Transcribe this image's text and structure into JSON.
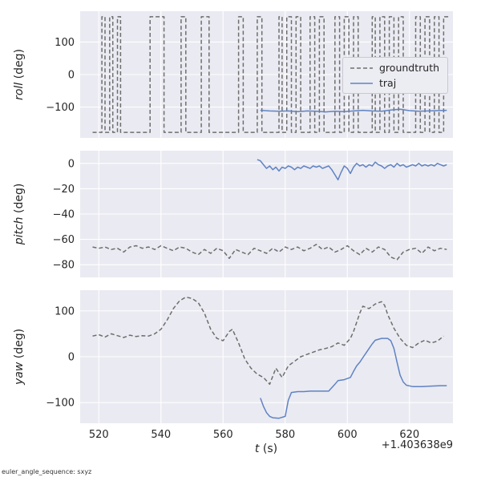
{
  "figure": {
    "background": "#ffffff",
    "axes_bg": "#eaeaf2",
    "grid_color": "#ffffff",
    "text_color": "#262626",
    "xlabel": "t (s)",
    "xlabel_var": "t",
    "xlabel_unit": "(s)",
    "x_offset_label": "+1.403638e9",
    "footer_note": "euler_angle_sequence: sxyz",
    "legend": [
      {
        "label": "groundtruth",
        "color": "#6e6e6e",
        "style": "dashed"
      },
      {
        "label": "traj",
        "color": "#5f83c2",
        "style": "solid"
      }
    ]
  },
  "chart_data": [
    {
      "type": "line",
      "ylabel": "roll (deg)",
      "ylabel_var": "roll",
      "ylabel_unit": "(deg)",
      "xlim": [
        514,
        634
      ],
      "ylim": [
        -195,
        195
      ],
      "xticks": [
        520,
        540,
        560,
        580,
        600,
        620
      ],
      "yticks": [
        -100,
        0,
        100
      ],
      "show_xticklabels": false,
      "grid": true,
      "series": [
        {
          "name": "groundtruth",
          "color": "#6e6e6e",
          "dash": true,
          "x": [
            518,
            521,
            521,
            522,
            522,
            523.5,
            523.5,
            524.5,
            524.5,
            526,
            526,
            527,
            527,
            536.5,
            536.5,
            541,
            541,
            546.5,
            546.5,
            548,
            548,
            553,
            553,
            555.5,
            555.5,
            565,
            565,
            566.5,
            566.5,
            571,
            571,
            572.5,
            572.5,
            578,
            578,
            579,
            579,
            580.5,
            580.5,
            582,
            582,
            583.5,
            583.5,
            585,
            585,
            588,
            588,
            589.5,
            589.5,
            591,
            591,
            592.5,
            592.5,
            596,
            596,
            597.5,
            597.5,
            599,
            599,
            600.5,
            600.5,
            602,
            602,
            603.5,
            603.5,
            608,
            608,
            609,
            609,
            610.5,
            610.5,
            612,
            612,
            613.5,
            613.5,
            615,
            615,
            616.5,
            616.5,
            618,
            618,
            622,
            622,
            623.5,
            623.5,
            625,
            625,
            626.5,
            626.5,
            628,
            628,
            629.5,
            629.5,
            631,
            631,
            632.5
          ],
          "y": [
            -178,
            -178,
            178,
            178,
            -178,
            -178,
            178,
            178,
            -178,
            -178,
            178,
            178,
            -178,
            -178,
            178,
            178,
            -178,
            -178,
            178,
            178,
            -178,
            -178,
            178,
            178,
            -178,
            -178,
            178,
            178,
            -178,
            -178,
            178,
            178,
            -178,
            -178,
            178,
            178,
            -178,
            -178,
            178,
            178,
            -178,
            -178,
            178,
            178,
            -178,
            -178,
            178,
            178,
            -178,
            -178,
            178,
            178,
            -178,
            -178,
            178,
            178,
            -178,
            -178,
            178,
            178,
            -178,
            -178,
            178,
            178,
            -178,
            -178,
            178,
            178,
            -178,
            -178,
            178,
            178,
            -178,
            -178,
            178,
            178,
            -178,
            -178,
            178,
            178,
            -178,
            -178,
            178,
            178,
            -178,
            -178,
            178,
            178,
            -178,
            -178,
            178,
            178,
            -178,
            -178,
            178,
            178
          ]
        },
        {
          "name": "traj",
          "color": "#5f83c2",
          "dash": false,
          "x": [
            572,
            575,
            578,
            581,
            584,
            587,
            590,
            593,
            596,
            599,
            602,
            605,
            608,
            611,
            614,
            617,
            620,
            623,
            626,
            629,
            632
          ],
          "y": [
            -110,
            -112,
            -113,
            -112,
            -114,
            -112,
            -113,
            -115,
            -113,
            -114,
            -112,
            -110,
            -112,
            -113,
            -109,
            -107,
            -111,
            -113,
            -112,
            -111,
            -110
          ]
        }
      ]
    },
    {
      "type": "line",
      "ylabel": "pitch (deg)",
      "ylabel_var": "pitch",
      "ylabel_unit": "(deg)",
      "xlim": [
        514,
        634
      ],
      "ylim": [
        -90,
        10
      ],
      "xticks": [
        520,
        540,
        560,
        580,
        600,
        620
      ],
      "yticks": [
        0,
        -20,
        -40,
        -60,
        -80
      ],
      "show_xticklabels": false,
      "grid": true,
      "series": [
        {
          "name": "groundtruth",
          "color": "#6e6e6e",
          "dash": true,
          "x": [
            518,
            520,
            522,
            524,
            526,
            528,
            530,
            532,
            534,
            536,
            538,
            540,
            542,
            544,
            546,
            548,
            550,
            552,
            554,
            556,
            558,
            560,
            562,
            564,
            566,
            568,
            570,
            572,
            574,
            576,
            578,
            580,
            582,
            584,
            586,
            588,
            590,
            592,
            594,
            596,
            598,
            600,
            602,
            604,
            606,
            608,
            610,
            612,
            614,
            616,
            618,
            620,
            622,
            624,
            626,
            628,
            630,
            632
          ],
          "y": [
            -66,
            -67,
            -66,
            -68,
            -67,
            -70,
            -66,
            -65,
            -67,
            -66,
            -68,
            -65,
            -67,
            -69,
            -66,
            -67,
            -70,
            -72,
            -68,
            -71,
            -67,
            -69,
            -75,
            -68,
            -70,
            -72,
            -67,
            -69,
            -71,
            -67,
            -70,
            -66,
            -68,
            -66,
            -69,
            -67,
            -64,
            -68,
            -66,
            -70,
            -68,
            -65,
            -69,
            -72,
            -67,
            -70,
            -66,
            -68,
            -74,
            -76,
            -70,
            -68,
            -67,
            -71,
            -66,
            -69,
            -67,
            -68
          ]
        },
        {
          "name": "traj",
          "color": "#5f83c2",
          "dash": false,
          "x": [
            571,
            572,
            573,
            574,
            575,
            576,
            577,
            578,
            579,
            580,
            581,
            582,
            583,
            584,
            585,
            586,
            587,
            588,
            589,
            590,
            591,
            592,
            593,
            594,
            595,
            596,
            597,
            598,
            599,
            600,
            601,
            602,
            603,
            604,
            605,
            606,
            607,
            608,
            609,
            610,
            611,
            612,
            613,
            614,
            615,
            616,
            617,
            618,
            619,
            620,
            621,
            622,
            623,
            624,
            625,
            626,
            627,
            628,
            629,
            630,
            631,
            632
          ],
          "y": [
            3,
            2,
            -1,
            -4,
            -2,
            -5,
            -3,
            -6,
            -3,
            -4,
            -2,
            -3,
            -5,
            -3,
            -4,
            -2,
            -3,
            -4,
            -2,
            -3,
            -2,
            -4,
            -3,
            -2,
            -5,
            -9,
            -13,
            -7,
            -2,
            -4,
            -8,
            -3,
            0,
            -2,
            -1,
            -3,
            -1,
            -2,
            1,
            -1,
            -2,
            -4,
            -2,
            -1,
            -3,
            0,
            -2,
            -1,
            -3,
            -2,
            -1,
            -2,
            0,
            -2,
            -1,
            -2,
            -1,
            -2,
            0,
            -1,
            -2,
            -1
          ]
        }
      ]
    },
    {
      "type": "line",
      "ylabel": "yaw (deg)",
      "ylabel_var": "yaw",
      "ylabel_unit": "(deg)",
      "xlim": [
        514,
        634
      ],
      "ylim": [
        -145,
        145
      ],
      "xticks": [
        520,
        540,
        560,
        580,
        600,
        620
      ],
      "yticks": [
        -100,
        0,
        100
      ],
      "show_xticklabels": true,
      "grid": true,
      "series": [
        {
          "name": "groundtruth",
          "color": "#6e6e6e",
          "dash": true,
          "x": [
            518,
            520,
            522,
            524,
            526,
            528,
            530,
            532,
            534,
            536,
            538,
            540,
            542,
            544,
            546,
            548,
            550,
            552,
            554,
            556,
            558,
            560,
            562,
            563,
            565,
            567,
            569,
            571,
            573,
            575,
            577,
            579,
            581,
            583,
            585,
            587,
            589,
            591,
            593,
            595,
            597,
            599,
            601,
            602,
            603,
            604,
            605,
            607,
            609,
            611,
            612,
            613,
            615,
            617,
            619,
            621,
            623,
            625,
            627,
            629,
            631
          ],
          "y": [
            45,
            48,
            43,
            50,
            46,
            42,
            47,
            44,
            46,
            45,
            50,
            60,
            80,
            105,
            122,
            130,
            127,
            118,
            95,
            60,
            40,
            35,
            55,
            60,
            30,
            -5,
            -25,
            -38,
            -45,
            -60,
            -25,
            -45,
            -20,
            -10,
            0,
            5,
            10,
            15,
            18,
            22,
            30,
            25,
            40,
            55,
            75,
            95,
            110,
            105,
            115,
            120,
            112,
            92,
            62,
            40,
            25,
            20,
            30,
            36,
            30,
            34,
            45
          ]
        },
        {
          "name": "traj",
          "color": "#5f83c2",
          "dash": false,
          "x": [
            572,
            573,
            574,
            575,
            576,
            578,
            580,
            581,
            582,
            584,
            586,
            588,
            590,
            592,
            594,
            596,
            597,
            599,
            601,
            602,
            603,
            604,
            605,
            606,
            607,
            608,
            609,
            611,
            613,
            614,
            615,
            616,
            617,
            618,
            619,
            621,
            624,
            627,
            630,
            632
          ],
          "y": [
            -90,
            -108,
            -122,
            -130,
            -133,
            -134,
            -130,
            -95,
            -78,
            -76,
            -76,
            -75,
            -75,
            -75,
            -75,
            -60,
            -52,
            -50,
            -45,
            -32,
            -20,
            -12,
            -2,
            8,
            18,
            28,
            36,
            40,
            40,
            35,
            18,
            -12,
            -40,
            -55,
            -62,
            -65,
            -65,
            -64,
            -63,
            -63
          ]
        }
      ]
    }
  ]
}
